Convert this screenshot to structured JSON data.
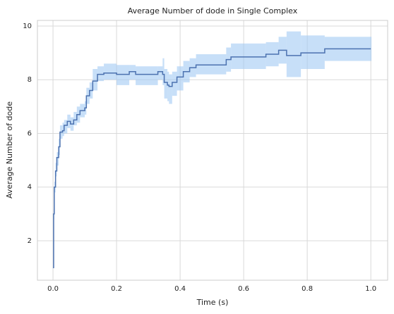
{
  "chart_data": {
    "type": "step-band",
    "step": "post",
    "title": "Average Number of dode in Single Complex",
    "xlabel": "Time (s)",
    "ylabel": "Average Number of dode",
    "x": [
      0.0,
      0.002,
      0.004,
      0.008,
      0.012,
      0.018,
      0.022,
      0.03,
      0.035,
      0.045,
      0.055,
      0.065,
      0.075,
      0.085,
      0.1,
      0.105,
      0.115,
      0.125,
      0.14,
      0.16,
      0.2,
      0.24,
      0.26,
      0.33,
      0.345,
      0.35,
      0.36,
      0.365,
      0.375,
      0.39,
      0.41,
      0.43,
      0.45,
      0.545,
      0.56,
      0.67,
      0.71,
      0.735,
      0.78,
      0.855,
      1.0
    ],
    "series": [
      {
        "color": "#4c72b0",
        "values": [
          1.0,
          3.0,
          4.0,
          4.6,
          5.1,
          5.5,
          6.05,
          6.1,
          6.3,
          6.45,
          6.35,
          6.5,
          6.7,
          6.85,
          6.95,
          7.4,
          7.6,
          7.95,
          8.2,
          8.25,
          8.2,
          8.3,
          8.2,
          8.3,
          8.2,
          7.9,
          7.8,
          7.75,
          7.9,
          8.1,
          8.3,
          8.45,
          8.55,
          8.75,
          8.85,
          8.95,
          9.1,
          8.9,
          9.0,
          9.15,
          9.15
        ],
        "lower": [
          1.0,
          2.8,
          3.8,
          4.4,
          4.8,
          5.2,
          5.8,
          5.9,
          6.0,
          6.2,
          6.1,
          6.3,
          6.4,
          6.6,
          6.7,
          7.1,
          7.3,
          7.6,
          7.95,
          8.0,
          7.8,
          8.0,
          7.8,
          8.0,
          7.8,
          7.3,
          7.2,
          7.1,
          7.4,
          7.6,
          7.9,
          8.1,
          8.2,
          8.3,
          8.4,
          8.5,
          8.6,
          8.1,
          8.4,
          8.7,
          8.7
        ],
        "upper": [
          1.0,
          3.2,
          4.2,
          4.9,
          5.3,
          5.8,
          6.3,
          6.4,
          6.5,
          6.7,
          6.6,
          6.8,
          7.0,
          7.1,
          7.2,
          7.7,
          7.9,
          8.4,
          8.5,
          8.6,
          8.55,
          8.55,
          8.5,
          8.5,
          8.8,
          8.4,
          8.3,
          8.2,
          8.3,
          8.5,
          8.7,
          8.8,
          8.95,
          9.2,
          9.35,
          9.4,
          9.6,
          9.8,
          9.65,
          9.6,
          9.6
        ],
        "band_color": "#a1c9f4"
      }
    ],
    "xlim": [
      -0.049,
      1.053
    ],
    "ylim": [
      0.53,
      10.21
    ],
    "xticks": [
      {
        "value": 0,
        "label": "0.0"
      },
      {
        "value": 0.2,
        "label": "0.2"
      },
      {
        "value": 0.4,
        "label": "0.4"
      },
      {
        "value": 0.6,
        "label": "0.6"
      },
      {
        "value": 0.8,
        "label": "0.8"
      },
      {
        "value": 1,
        "label": "1.0"
      }
    ],
    "yticks": [
      2,
      4,
      6,
      8,
      10
    ],
    "grid": true
  }
}
